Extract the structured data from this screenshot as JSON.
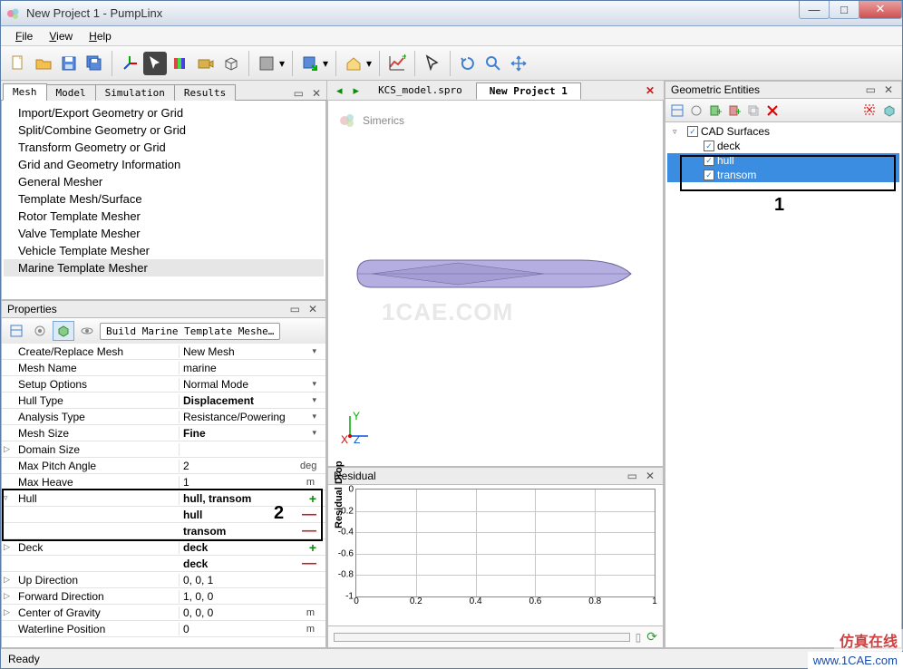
{
  "window": {
    "title": "New Project 1 - PumpLinx"
  },
  "menu": {
    "file": "File",
    "view": "View",
    "help": "Help"
  },
  "main_tabs": {
    "mesh": "Mesh",
    "model": "Model",
    "simulation": "Simulation",
    "results": "Results"
  },
  "mesh_tree": [
    "Import/Export Geometry or Grid",
    "Split/Combine Geometry or Grid",
    "Transform Geometry or Grid",
    "Grid and Geometry Information",
    "General Mesher",
    "Template Mesh/Surface",
    "Rotor Template Mesher",
    "Valve Template Mesher",
    "Vehicle Template Mesher",
    "Marine Template Mesher"
  ],
  "mesh_tree_selected_index": 9,
  "properties": {
    "title": "Properties",
    "build_btn": "Build Marine Template Meshe…",
    "rows": [
      {
        "k": "Create/Replace Mesh",
        "v": "New Mesh",
        "dd": true
      },
      {
        "k": "Mesh Name",
        "v": "marine"
      },
      {
        "k": "Setup Options",
        "v": "Normal Mode",
        "dd": true
      },
      {
        "k": "Hull Type",
        "v": "Displacement",
        "bold": true,
        "dd": true
      },
      {
        "k": "Analysis Type",
        "v": "Resistance/Powering",
        "dd": true
      },
      {
        "k": "Mesh Size",
        "v": "Fine",
        "bold": true,
        "dd": true
      },
      {
        "k": "Domain Size",
        "v": "",
        "exp": "▷"
      },
      {
        "k": "Max Pitch Angle",
        "v": "2",
        "u": "deg"
      },
      {
        "k": "Max Heave",
        "v": "1",
        "u": "m"
      },
      {
        "k": "Hull",
        "v": "hull, transom",
        "bold": true,
        "plus": true,
        "exp": "▿"
      },
      {
        "k": "",
        "v": "hull",
        "bold": true,
        "minus": true
      },
      {
        "k": "",
        "v": "transom",
        "bold": true,
        "minus": true
      },
      {
        "k": "Deck",
        "v": "deck",
        "bold": true,
        "plus": true,
        "exp": "▷"
      },
      {
        "k": "",
        "v": "deck",
        "bold": true,
        "minus": true
      },
      {
        "k": "Up Direction",
        "v": "0, 0, 1",
        "exp": "▷"
      },
      {
        "k": "Forward Direction",
        "v": "1, 0, 0",
        "exp": "▷"
      },
      {
        "k": "Center of Gravity",
        "v": "0, 0, 0",
        "u": "m",
        "exp": "▷"
      },
      {
        "k": "Waterline Position",
        "v": "0",
        "u": "m"
      }
    ]
  },
  "documents": {
    "tab1": "KCS_model.spro",
    "tab2": "New Project 1",
    "brand": "Simerics",
    "watermark": "1CAE.COM",
    "hull_color": "#b5aee0",
    "hull_stroke": "#6a659a"
  },
  "residual": {
    "title": "Residual",
    "ylabel": "Residual Drop",
    "yticks": [
      "0",
      "-0.2",
      "-0.4",
      "-0.6",
      "-0.8",
      "-1"
    ],
    "xticks": [
      "0",
      "0.2",
      "0.4",
      "0.6",
      "0.8",
      "1"
    ]
  },
  "geom": {
    "title": "Geometric Entities",
    "root": "CAD Surfaces",
    "items": [
      "deck",
      "hull",
      "transom"
    ]
  },
  "annotations": {
    "n1": "1",
    "n2": "2"
  },
  "status": "Ready",
  "footer": {
    "cn": "仿真在线",
    "url": "www.1CAE.com"
  }
}
